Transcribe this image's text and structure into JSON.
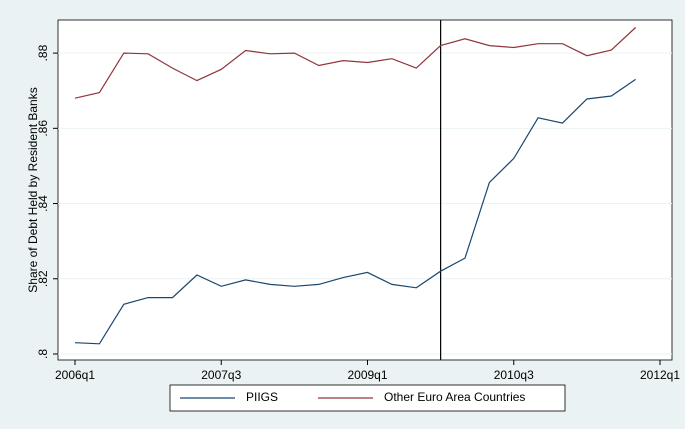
{
  "chart_data": {
    "type": "line",
    "y_label": "Share of Debt Held by Resident Banks",
    "categories": [
      "2006q1",
      null,
      null,
      null,
      null,
      null,
      "2007q3",
      null,
      null,
      null,
      null,
      null,
      "2009q1",
      null,
      null,
      null,
      null,
      null,
      "2010q3",
      null,
      null,
      null,
      null,
      null,
      "2012q1"
    ],
    "series": [
      {
        "name": "PIIGS",
        "color": "#1a476f",
        "values": [
          0.803,
          0.8027,
          0.8132,
          0.815,
          0.815,
          0.821,
          0.818,
          0.8197,
          0.8185,
          0.818,
          0.8185,
          0.8203,
          0.8217,
          0.8185,
          0.8176,
          0.822,
          0.8255,
          0.8456,
          0.852,
          0.8628,
          0.8614,
          0.8678,
          0.8686,
          0.873,
          null
        ]
      },
      {
        "name": "Other Euro Area Countries",
        "color": "#90353b",
        "values": [
          0.868,
          0.8695,
          0.88,
          0.8798,
          0.876,
          0.8727,
          0.8757,
          0.8807,
          0.8798,
          0.88,
          0.8767,
          0.878,
          0.8775,
          0.8785,
          0.876,
          0.882,
          0.8838,
          0.882,
          0.8815,
          0.8825,
          0.8825,
          0.8793,
          0.8808,
          0.8868,
          null
        ]
      }
    ],
    "vline_index": 15,
    "ylim": [
      0.7984,
      0.8888
    ],
    "yticks": [
      {
        "value": 0.8,
        "label": ".8"
      },
      {
        "value": 0.82,
        "label": ".82"
      },
      {
        "value": 0.84,
        "label": ".84"
      },
      {
        "value": 0.86,
        "label": ".86"
      },
      {
        "value": 0.88,
        "label": ".88"
      }
    ],
    "grid": true,
    "legend": "bottom"
  }
}
